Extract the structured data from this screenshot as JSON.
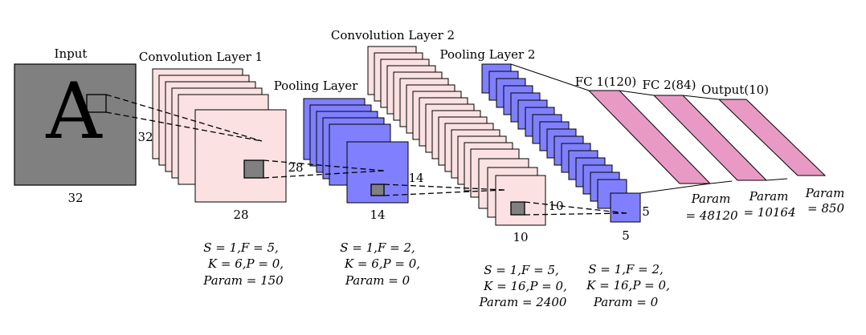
{
  "stages": {
    "input": {
      "title": "Input",
      "glyph": "A",
      "size_side": "32",
      "size_bottom": "32"
    },
    "conv1": {
      "title": "Convolution Layer 1",
      "size_side": "28",
      "size_bottom": "28",
      "params": [
        "S = 1,F = 5,",
        "K = 6,P = 0,",
        "Param = 150"
      ]
    },
    "pool1": {
      "title": "Pooling Layer",
      "size_side": "14",
      "size_bottom": "14",
      "params": [
        "S = 1,F = 2,",
        "K = 6,P = 0,",
        "Param = 0"
      ]
    },
    "conv2": {
      "title": "Convolution Layer 2",
      "size_side": "10",
      "size_bottom": "10",
      "params": [
        "S = 1,F = 5,",
        "K = 16,P = 0,",
        "Param = 2400"
      ]
    },
    "pool2": {
      "title": "Pooling Layer 2",
      "size_side": "5",
      "size_bottom": "5",
      "params": [
        "S = 1,F = 2,",
        "K = 16,P = 0,",
        "Param = 0"
      ]
    },
    "fc1": {
      "title": "FC 1(120)",
      "params": [
        "Param",
        "= 48120"
      ]
    },
    "fc2": {
      "title": "FC 2(84)",
      "params": [
        "Param",
        "= 10164"
      ]
    },
    "output": {
      "title": "Output(10)",
      "params": [
        "Param",
        "= 850"
      ]
    }
  },
  "colors": {
    "input_fill": "#808080",
    "conv_fill": "#fbe1e1",
    "pool_fill": "#8080ff",
    "fc_fill": "#e89ac4",
    "kernel_fill": "#808080"
  }
}
